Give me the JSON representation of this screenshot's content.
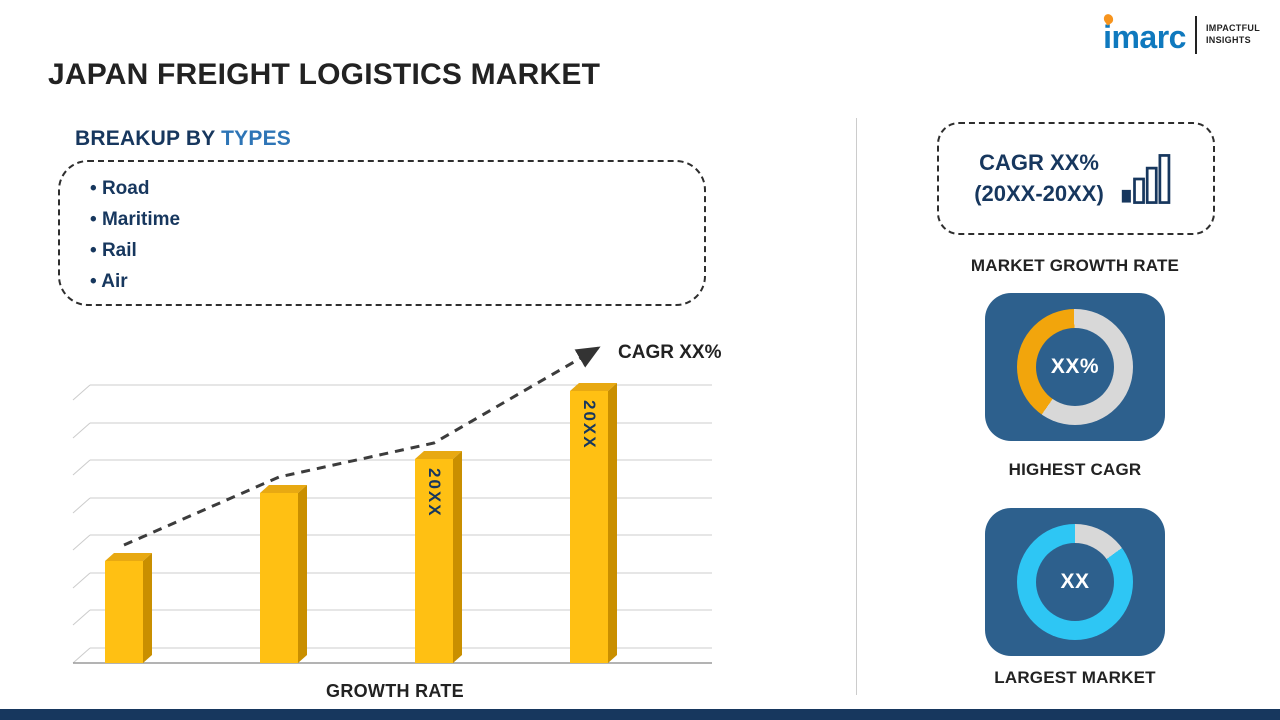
{
  "header": {
    "title": "JAPAN FREIGHT LOGISTICS MARKET"
  },
  "logo": {
    "brand": "imarc",
    "tagline_line1": "IMPACTFUL",
    "tagline_line2": "INSIGHTS"
  },
  "breakup": {
    "heading_prefix": "BREAKUP BY ",
    "heading_highlight": "TYPES",
    "items": [
      "Road",
      "Maritime",
      "Rail",
      "Air"
    ]
  },
  "chart_data": [
    {
      "type": "bar",
      "title": "",
      "categories": [
        "",
        "",
        "20XX",
        "20XX"
      ],
      "values": [
        30,
        50,
        60,
        80
      ],
      "xlabel": "GROWTH RATE",
      "ylabel": "",
      "trend_label": "CAGR XX%",
      "grid": "horizontal",
      "legend": "none",
      "bar_color_front": "#FFC013",
      "bar_color_side": "#C98F00",
      "bar_color_top": "#E8A912"
    },
    {
      "type": "pie",
      "style": "donut",
      "center_label": "XX%",
      "caption": "HIGHEST CAGR",
      "from_deg": 215,
      "segments": [
        {
          "color": "#F2A50C",
          "pct": 40
        },
        {
          "color": "#D8D8D8",
          "pct": 60
        }
      ]
    },
    {
      "type": "pie",
      "style": "donut",
      "center_label": "XX",
      "caption": "LARGEST MARKET",
      "from_deg": 0,
      "segments": [
        {
          "color": "#D8D8D8",
          "pct": 15
        },
        {
          "color": "#2EC6F4",
          "pct": 85
        }
      ]
    }
  ],
  "right_panel": {
    "growth_box": {
      "line1": "CAGR XX%",
      "line2": "(20XX-20XX)",
      "caption": "MARKET GROWTH RATE"
    }
  },
  "theme": {
    "navy": "#17375E",
    "highlight_blue": "#2E75B6",
    "tile_blue": "#2D608D",
    "bar_gold": "#FFC013",
    "donut_orange": "#F2A50C",
    "donut_cyan": "#2EC6F4",
    "logo_blue": "#0F79BE",
    "logo_orange": "#F7941D",
    "footer_navy": "#17375E"
  }
}
